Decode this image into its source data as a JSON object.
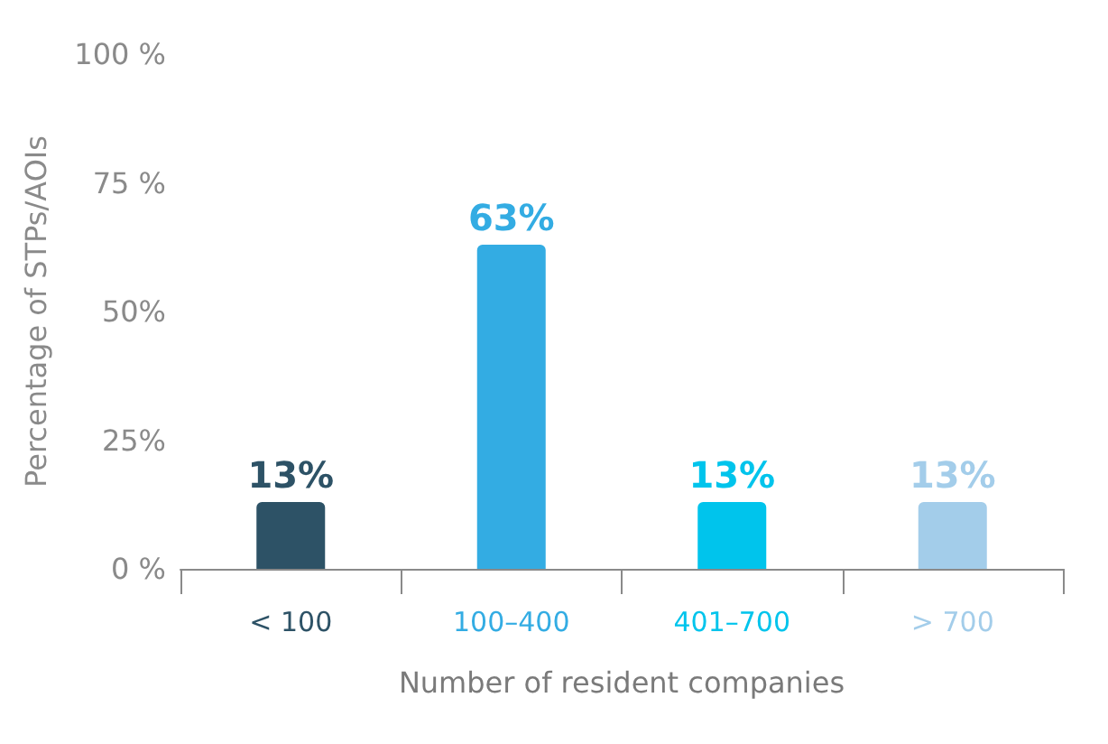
{
  "chart_data": {
    "type": "bar",
    "xlabel": "Number of resident companies",
    "ylabel": "Percentage of STPs/AOIs",
    "categories": [
      "< 100",
      "100–400",
      "401–700",
      "> 700"
    ],
    "values": [
      13,
      63,
      13,
      13
    ],
    "colors": [
      "#2d5266",
      "#33ace3",
      "#00c4ec",
      "#a3cdea"
    ],
    "value_labels": [
      "13%",
      "63%",
      "13%",
      "13%"
    ],
    "ylim": [
      0,
      100
    ],
    "yticks": [
      {
        "value": 0,
        "label": "0 %"
      },
      {
        "value": 25,
        "label": "25%"
      },
      {
        "value": 50,
        "label": "50%"
      },
      {
        "value": 75,
        "label": "75 %"
      },
      {
        "value": 100,
        "label": "100 %"
      }
    ],
    "grid": false
  }
}
